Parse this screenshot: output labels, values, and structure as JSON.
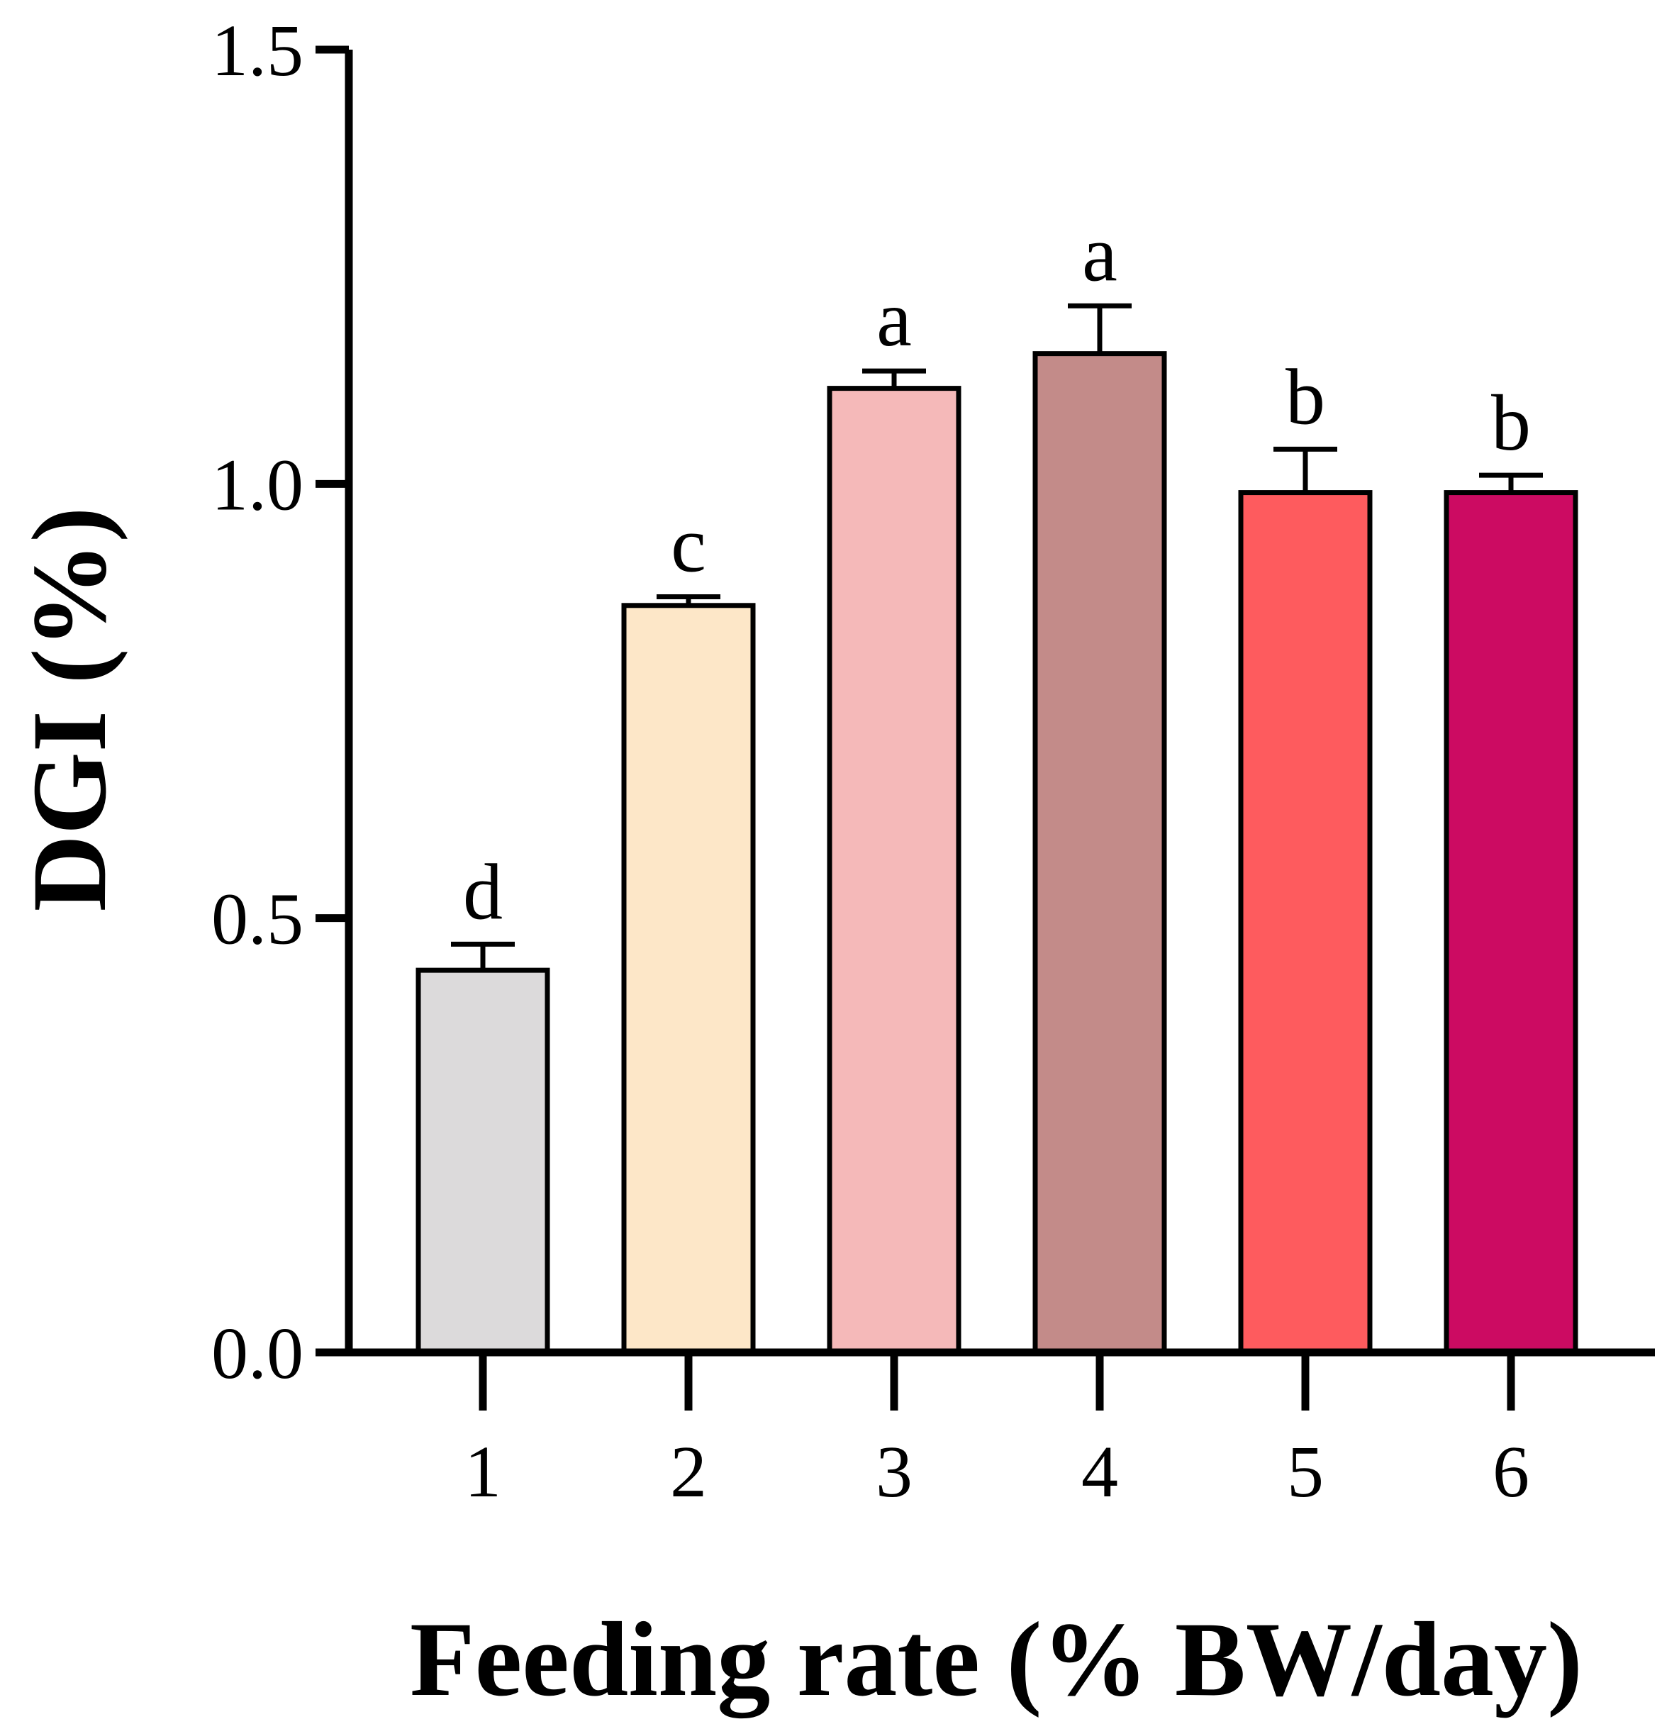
{
  "chart_data": {
    "type": "bar",
    "title": "",
    "xlabel": "Feeding rate (% BW/day)",
    "ylabel": "DGI (%)",
    "ylim": [
      0,
      1.5
    ],
    "yticks": [
      0.0,
      0.5,
      1.0,
      1.5
    ],
    "ytick_labels": [
      "0.0",
      "0.5",
      "1.0",
      "1.5"
    ],
    "categories": [
      "1",
      "2",
      "3",
      "4",
      "5",
      "6"
    ],
    "values": [
      0.44,
      0.86,
      1.11,
      1.15,
      0.99,
      0.99
    ],
    "errors": [
      0.03,
      0.01,
      0.02,
      0.055,
      0.05,
      0.02
    ],
    "significance": [
      "d",
      "c",
      "a",
      "a",
      "b",
      "b"
    ],
    "colors": [
      "#dcdadb",
      "#fde7c8",
      "#f5b9b9",
      "#c38b89",
      "#fe5b5e",
      "#cc0b62"
    ],
    "grid": false,
    "legend": "none"
  }
}
